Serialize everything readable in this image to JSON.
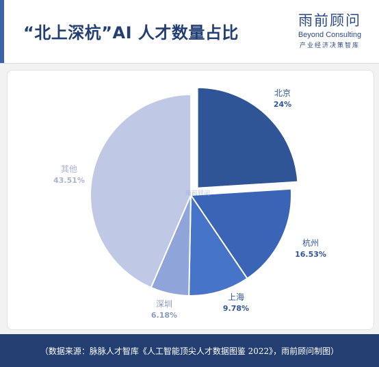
{
  "header": {
    "title": "“北上深杭”AI 人才数量占比",
    "logo_cn": "雨前顾问",
    "logo_en": "Beyond Consulting",
    "logo_sub": "产业经济决策智库"
  },
  "chart_data": {
    "type": "pie",
    "categories": [
      "北京",
      "杭州",
      "上海",
      "深圳",
      "其他"
    ],
    "values": [
      24,
      16.53,
      9.78,
      6.18,
      43.51
    ],
    "value_labels": [
      "24%",
      "16.53%",
      "9.78%",
      "6.18%",
      "43.51%"
    ],
    "exploded": "北京",
    "colors": [
      "#2f5597",
      "#3a64b5",
      "#4674c8",
      "#8fa4d8",
      "#bfc9e6"
    ],
    "label_colors": [
      "#2f5597",
      "#2f5597",
      "#2f5597",
      "#8b99be",
      "#a7b3d2"
    ],
    "title": ""
  },
  "watermark": "雨前顾问",
  "footer": {
    "text": "（数据来源：脉脉人才智库《人工智能顶尖人才数据图鉴 2022》，雨前顾问制图）"
  }
}
